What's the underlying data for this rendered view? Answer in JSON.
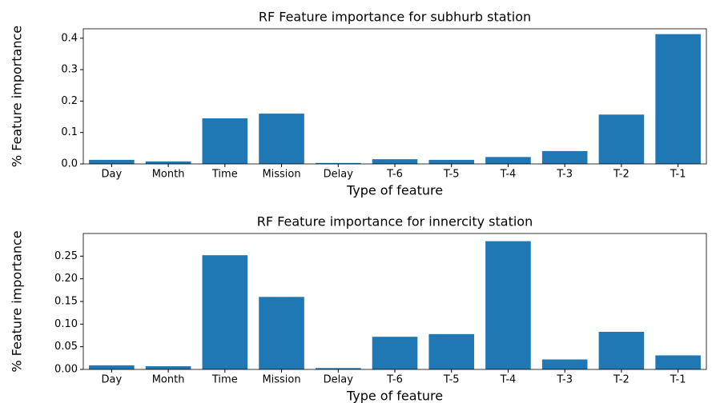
{
  "chart_data": [
    {
      "type": "bar",
      "title": "RF Feature importance for subhurb station",
      "x_label": "Type of feature",
      "y_label": "% Feature importance",
      "categories": [
        "Day",
        "Month",
        "Time",
        "Mission",
        "Delay",
        "T-6",
        "T-5",
        "T-4",
        "T-3",
        "T-2",
        "T-1"
      ],
      "values": [
        0.013,
        0.008,
        0.145,
        0.16,
        0.003,
        0.015,
        0.013,
        0.022,
        0.041,
        0.157,
        0.413
      ],
      "color": "#1f77b4",
      "ylim": [
        0,
        0.43
      ],
      "yticks": [
        {
          "value": 0,
          "label": "0.0"
        },
        0.1,
        0.2,
        0.3,
        0.4
      ],
      "grid": false
    },
    {
      "type": "bar",
      "title": "RF Feature importance for innercity station",
      "x_label": "Type of feature",
      "y_label": "% Feature importance",
      "categories": [
        "Day",
        "Month",
        "Time",
        "Mission",
        "Delay",
        "T-6",
        "T-5",
        "T-4",
        "T-3",
        "T-2",
        "T-1"
      ],
      "values": [
        0.009,
        0.007,
        0.252,
        0.16,
        0.003,
        0.072,
        0.078,
        0.283,
        0.022,
        0.083,
        0.031
      ],
      "color": "#1f77b4",
      "ylim": [
        0,
        0.3
      ],
      "yticks": [
        {
          "value": 0,
          "label": "0.00"
        },
        {
          "value": 0.05,
          "label": "0.05"
        },
        {
          "value": 0.1,
          "label": "0.10"
        },
        {
          "value": 0.15,
          "label": "0.15"
        },
        {
          "value": 0.2,
          "label": "0.20"
        },
        {
          "value": 0.25,
          "label": "0.25"
        }
      ],
      "grid": false
    }
  ]
}
